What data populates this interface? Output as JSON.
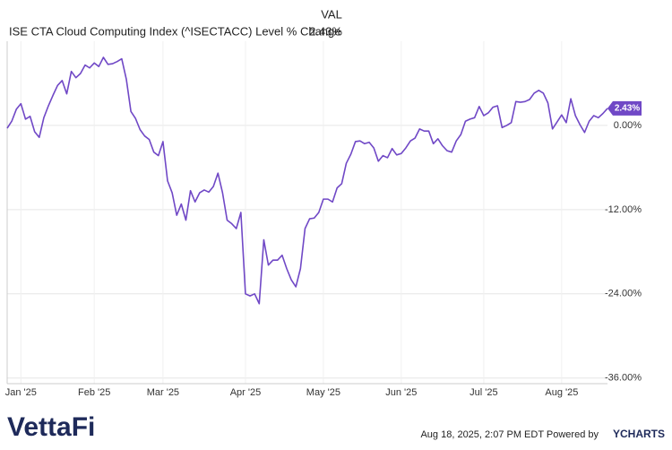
{
  "chart_data": {
    "type": "line",
    "column_header": "VAL",
    "series": [
      {
        "name": "ISE CTA Cloud Computing Index (^ISECTACC) Level % Change",
        "legend_value": "2.43%",
        "end_label": "2.43%",
        "color": "#7048c6",
        "values": [
          -0.4,
          0.6,
          2.3,
          3.1,
          0.9,
          1.3,
          -0.9,
          -1.7,
          1.1,
          2.8,
          4.3,
          5.7,
          6.4,
          4.5,
          7.7,
          6.8,
          7.4,
          8.6,
          8.2,
          8.9,
          8.4,
          9.7,
          8.7,
          8.8,
          9.1,
          9.5,
          6.6,
          2.0,
          1.0,
          -0.6,
          -1.5,
          -2.0,
          -3.8,
          -4.3,
          -2.3,
          -7.9,
          -9.6,
          -12.8,
          -11.2,
          -13.5,
          -9.3,
          -10.9,
          -9.6,
          -9.2,
          -9.5,
          -8.7,
          -6.8,
          -9.6,
          -13.5,
          -14.0,
          -14.7,
          -12.4,
          -24.0,
          -24.3,
          -24.0,
          -25.4,
          -16.3,
          -19.9,
          -19.2,
          -19.2,
          -18.5,
          -20.4,
          -22.0,
          -23.0,
          -20.4,
          -14.7,
          -13.3,
          -13.2,
          -12.4,
          -10.5,
          -10.5,
          -10.9,
          -8.9,
          -8.3,
          -5.4,
          -4.1,
          -2.3,
          -2.2,
          -2.6,
          -2.4,
          -3.2,
          -5.1,
          -4.3,
          -4.6,
          -3.3,
          -4.2,
          -4.0,
          -3.2,
          -2.2,
          -1.8,
          -0.5,
          -0.8,
          -0.8,
          -2.6,
          -1.9,
          -2.9,
          -3.6,
          -3.8,
          -2.2,
          -1.3,
          0.6,
          0.9,
          1.1,
          2.7,
          1.4,
          1.8,
          2.6,
          2.8,
          -0.3,
          0.0,
          0.4,
          3.4,
          3.3,
          3.4,
          3.7,
          4.6,
          5.0,
          4.6,
          3.2,
          -0.5,
          0.5,
          1.5,
          0.4,
          3.8,
          1.4,
          0.1,
          -1.0,
          0.6,
          1.4,
          1.1,
          1.7,
          2.43
        ]
      }
    ],
    "categories": [
      null,
      null,
      null,
      "Jan '25",
      null,
      null,
      null,
      null,
      null,
      null,
      null,
      null,
      null,
      null,
      null,
      null,
      null,
      null,
      null,
      "Feb '25",
      null,
      null,
      null,
      null,
      null,
      null,
      null,
      null,
      null,
      null,
      null,
      null,
      null,
      null,
      "Mar '25",
      null,
      null,
      null,
      null,
      null,
      null,
      null,
      null,
      null,
      null,
      null,
      null,
      null,
      null,
      null,
      null,
      null,
      "Apr '25",
      null,
      null,
      null,
      null,
      null,
      null,
      null,
      null,
      null,
      null,
      null,
      null,
      null,
      null,
      null,
      null,
      "May '25",
      null,
      null,
      null,
      null,
      null,
      null,
      null,
      null,
      null,
      null,
      null,
      null,
      null,
      null,
      null,
      null,
      "Jun '25",
      null,
      null,
      null,
      null,
      null,
      null,
      null,
      null,
      null,
      null,
      null,
      null,
      null,
      null,
      null,
      null,
      null,
      "Jul '25",
      null,
      null,
      null,
      null,
      null,
      null,
      null,
      null,
      null,
      null,
      null,
      null,
      null,
      null,
      null,
      null,
      "Aug '25",
      null,
      null,
      null,
      null,
      null,
      null,
      null,
      null,
      null,
      null
    ],
    "ylim": [
      -36.8,
      12
    ],
    "yticks": [
      {
        "value": 0,
        "label": "0.00%"
      },
      {
        "value": -12,
        "label": "-12.00%"
      },
      {
        "value": -24,
        "label": "-24.00%"
      },
      {
        "value": -36,
        "label": "-36.00%"
      }
    ],
    "grid": true,
    "footer": {
      "logo": "VettaFi",
      "timestamp": "Aug 18, 2025, 2:07 PM EDT Powered by",
      "brand": "YCHARTS"
    }
  }
}
